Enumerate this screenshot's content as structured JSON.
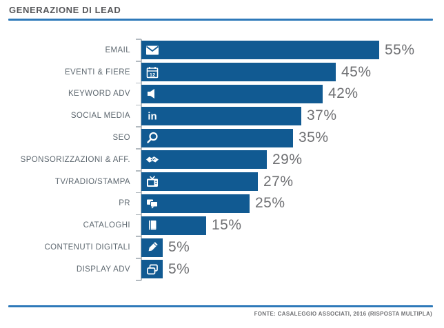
{
  "title": "GENERAZIONE DI LEAD",
  "footer": {
    "source": "FONTE: CASALEGGIO ASSOCIATI, 2016 (RISPOSTA MULTIPLA)"
  },
  "colors": {
    "bar": "#115A92",
    "rule": "#2E79B9",
    "title_text": "#57585B",
    "category_text": "#5E6870",
    "value_text": "#6F7073",
    "tick": "#B3BAC0"
  },
  "chart_data": {
    "type": "bar",
    "orientation": "horizontal",
    "title": "GENERAZIONE DI LEAD",
    "categories": [
      "EMAIL",
      "EVENTI & FIERE",
      "KEYWORD ADV",
      "SOCIAL MEDIA",
      "SEO",
      "SPONSORIZZAZIONI & AFF.",
      "TV/RADIO/STAMPA",
      "PR",
      "CATALOGHI",
      "CONTENUTI DIGITALI",
      "DISPLAY ADV"
    ],
    "values": [
      55,
      45,
      42,
      37,
      35,
      29,
      27,
      25,
      15,
      5,
      5
    ],
    "value_labels": [
      "55%",
      "45%",
      "42%",
      "37%",
      "35%",
      "29%",
      "27%",
      "25%",
      "15%",
      "5%",
      "5%"
    ],
    "icons": [
      "envelope-icon",
      "calendar-icon",
      "speaker-icon",
      "linkedin-icon",
      "search-icon",
      "handshake-icon",
      "tv-icon",
      "chat-icon",
      "book-icon",
      "pencil-icon",
      "copy-icon"
    ],
    "xlim": [
      0,
      55
    ],
    "grid": false,
    "legend": false,
    "value_suffix": "%",
    "source_note": "FONTE: CASALEGGIO ASSOCIATI, 2016 (RISPOSTA MULTIPLA)"
  }
}
